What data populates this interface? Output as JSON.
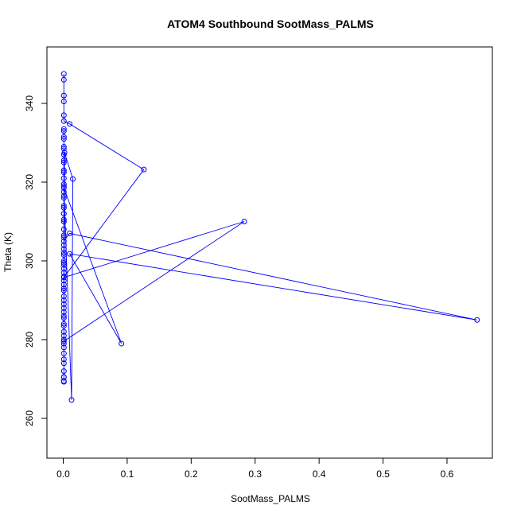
{
  "chart_data": {
    "type": "line",
    "title": "ATOM4 Southbound SootMass_PALMS",
    "xlabel": "SootMass_PALMS",
    "ylabel": "Theta (K)",
    "xlim": [
      0,
      0.65
    ],
    "ylim": [
      250,
      350
    ],
    "x_ticks": [
      "0.0",
      "0.1",
      "0.2",
      "0.3",
      "0.4",
      "0.5",
      "0.6"
    ],
    "y_ticks": [
      "260",
      "280",
      "300",
      "320",
      "340"
    ],
    "grid": false,
    "legend": "none",
    "series_color": "#0000ff",
    "markers": "open-circle",
    "points": [
      [
        0.001,
        347.5
      ],
      [
        0.001,
        346.0
      ],
      [
        0.001,
        342.0
      ],
      [
        0.001,
        340.5
      ],
      [
        0.001,
        337.0
      ],
      [
        0.001,
        335.5
      ],
      [
        0.01,
        334.8
      ],
      [
        0.126,
        323.2
      ],
      [
        0.001,
        295.8
      ],
      [
        0.283,
        310.0
      ],
      [
        0.001,
        279.6
      ],
      [
        0.002,
        327.5
      ],
      [
        0.015,
        320.8
      ],
      [
        0.013,
        264.7
      ],
      [
        0.001,
        318.5
      ],
      [
        0.091,
        279.0
      ],
      [
        0.01,
        301.8
      ],
      [
        0.647,
        285.0
      ],
      [
        0.01,
        307.0
      ],
      [
        0.001,
        305.0
      ],
      [
        0.001,
        302.0
      ],
      [
        0.001,
        300.0
      ],
      [
        0.001,
        298.0
      ],
      [
        0.001,
        295.0
      ],
      [
        0.001,
        293.0
      ],
      [
        0.001,
        291.0
      ],
      [
        0.001,
        289.0
      ],
      [
        0.001,
        287.0
      ],
      [
        0.001,
        285.5
      ],
      [
        0.001,
        283.5
      ],
      [
        0.001,
        281.0
      ],
      [
        0.001,
        279.0
      ],
      [
        0.001,
        276.5
      ],
      [
        0.001,
        275.0
      ],
      [
        0.001,
        272.0
      ],
      [
        0.001,
        270.5
      ],
      [
        0.001,
        269.5
      ],
      [
        0.001,
        269.3
      ],
      [
        0.001,
        270.5
      ],
      [
        0.001,
        274.0
      ],
      [
        0.001,
        278.0
      ],
      [
        0.001,
        282.0
      ],
      [
        0.001,
        286.0
      ],
      [
        0.001,
        290.0
      ],
      [
        0.001,
        294.0
      ],
      [
        0.001,
        297.0
      ],
      [
        0.001,
        299.5
      ],
      [
        0.001,
        301.5
      ],
      [
        0.001,
        304.0
      ],
      [
        0.001,
        306.0
      ],
      [
        0.001,
        308.0
      ],
      [
        0.001,
        310.0
      ],
      [
        0.001,
        312.0
      ],
      [
        0.001,
        314.0
      ],
      [
        0.001,
        316.0
      ],
      [
        0.001,
        317.5
      ],
      [
        0.001,
        319.5
      ],
      [
        0.001,
        321.0
      ],
      [
        0.001,
        323.0
      ],
      [
        0.001,
        325.0
      ],
      [
        0.001,
        327.0
      ],
      [
        0.001,
        329.0
      ],
      [
        0.001,
        331.0
      ],
      [
        0.001,
        333.0
      ],
      [
        0.001,
        333.5
      ],
      [
        0.001,
        331.5
      ],
      [
        0.001,
        328.5
      ],
      [
        0.001,
        325.5
      ],
      [
        0.001,
        322.5
      ],
      [
        0.001,
        319.0
      ],
      [
        0.001,
        316.5
      ],
      [
        0.001,
        313.5
      ],
      [
        0.001,
        310.5
      ],
      [
        0.001,
        306.5
      ],
      [
        0.001,
        303.0
      ],
      [
        0.001,
        299.0
      ],
      [
        0.001,
        296.0
      ],
      [
        0.001,
        292.5
      ],
      [
        0.001,
        288.0
      ],
      [
        0.001,
        284.0
      ],
      [
        0.001,
        280.0
      ]
    ]
  }
}
